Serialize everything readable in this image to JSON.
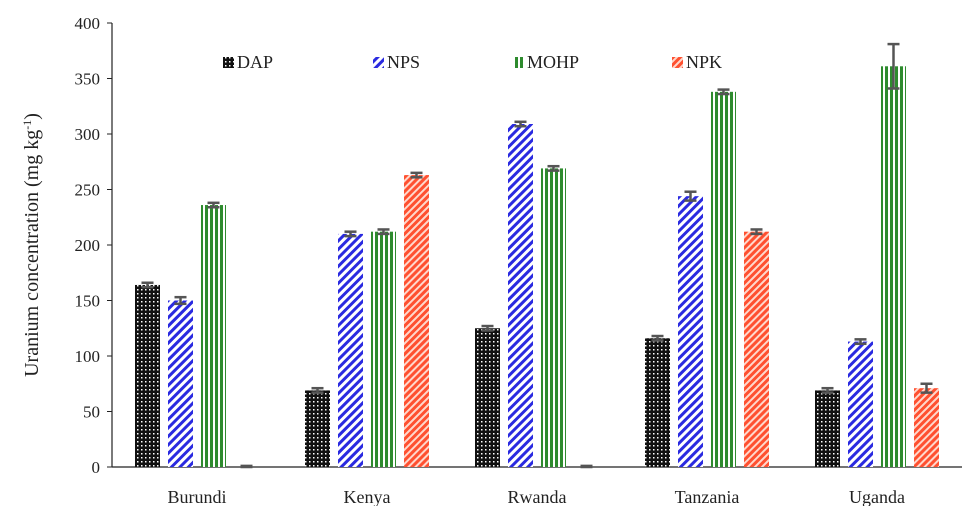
{
  "chart_data": {
    "type": "bar",
    "title": "",
    "xlabel": "",
    "ylabel_main": "Uranium concentration  (mg kg",
    "ylabel_sup": "-1",
    "ylabel_close": ")",
    "ylim": [
      0,
      400
    ],
    "yticks": [
      0,
      50,
      100,
      150,
      200,
      250,
      300,
      350,
      400
    ],
    "grid": false,
    "legend_position": "top",
    "categories": [
      "Burundi",
      "Kenya",
      "Rwanda",
      "Tanzania",
      "Uganda"
    ],
    "series": [
      {
        "name": "DAP",
        "color": "#111111",
        "pattern": "dots",
        "values": [
          164,
          69,
          125,
          116,
          69
        ],
        "errors": [
          2,
          2,
          2,
          2,
          2
        ]
      },
      {
        "name": "NPS",
        "color": "#2a2ae0",
        "pattern": "diagonal",
        "values": [
          150,
          210,
          309,
          244,
          113
        ],
        "errors": [
          3,
          2,
          2,
          4,
          2
        ]
      },
      {
        "name": "MOHP",
        "color": "#2e8b2e",
        "pattern": "vertical",
        "values": [
          236,
          212,
          269,
          338,
          361
        ],
        "errors": [
          2,
          2,
          2,
          2,
          20
        ]
      },
      {
        "name": "NPK",
        "color": "#ff5030",
        "pattern": "dense-diagonal",
        "values": [
          0,
          263,
          0,
          212,
          71
        ],
        "errors": [
          1,
          2,
          1,
          2,
          4
        ]
      }
    ]
  }
}
